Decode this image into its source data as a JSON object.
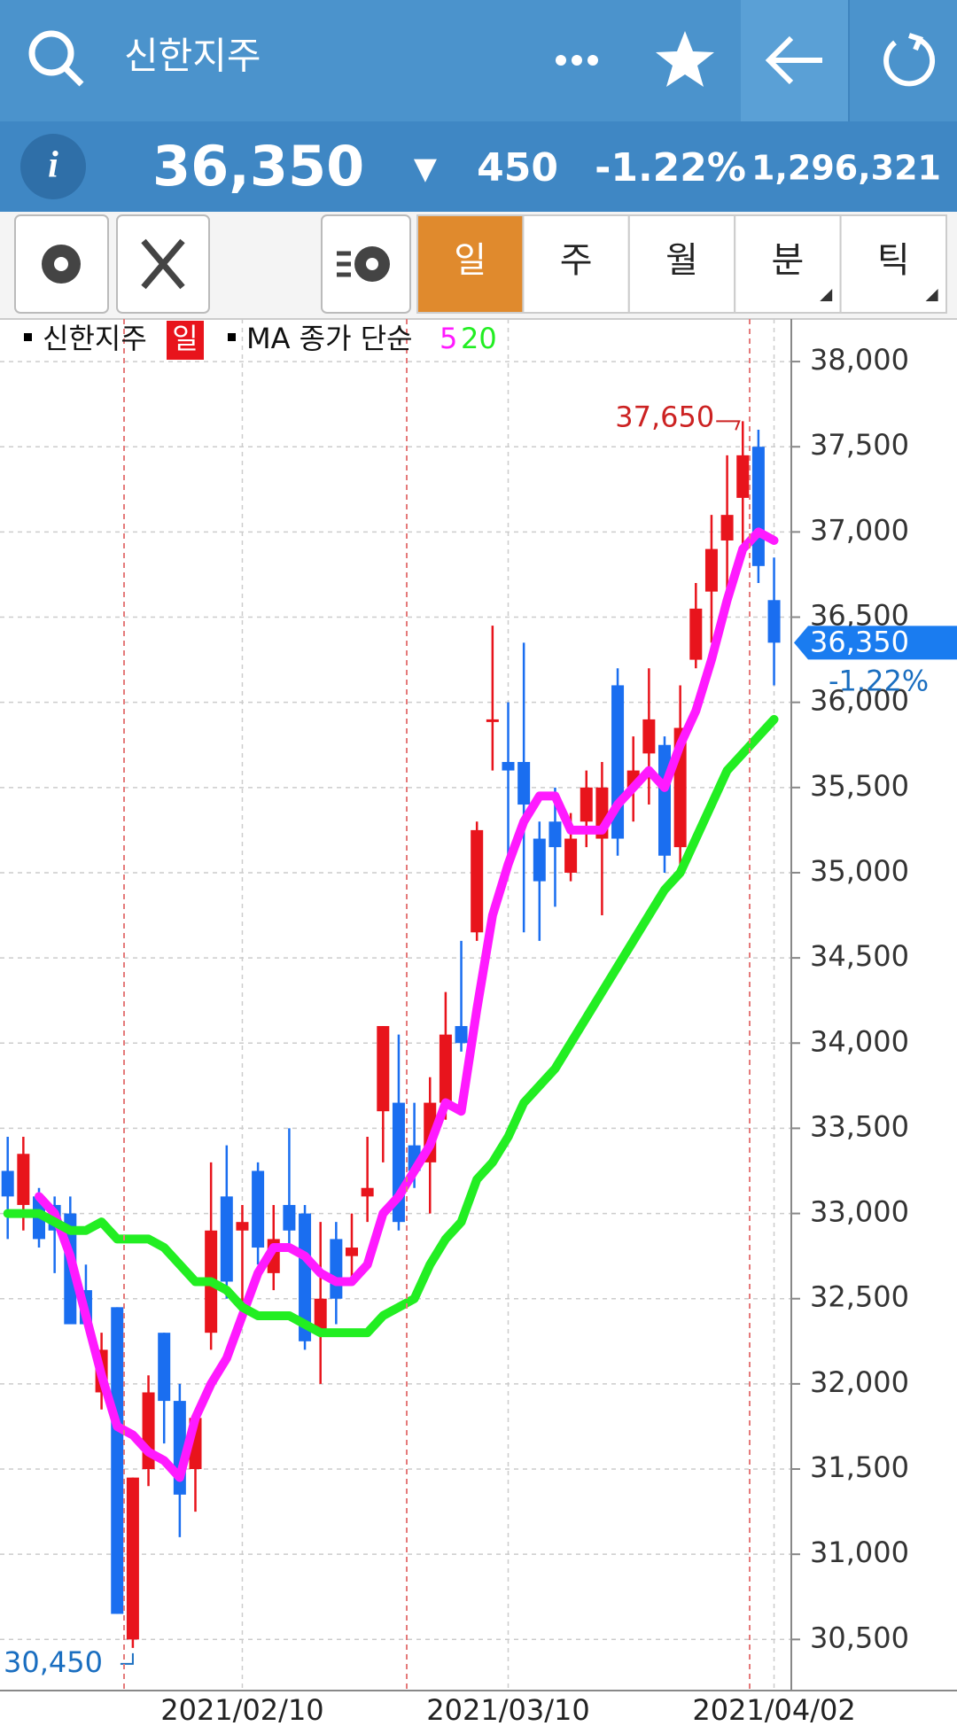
{
  "header": {
    "title": "신한지주",
    "price": "36,350",
    "arrow": "▼",
    "change": "450",
    "change_pct": "-1.22%",
    "volume": "1,296,321"
  },
  "toolbar": {
    "tabs": [
      "일",
      "주",
      "월",
      "분",
      "틱"
    ]
  },
  "chart_data": {
    "type": "candlestick",
    "name": "신한지주",
    "period": "일",
    "ma_label": "MA 종가 단순",
    "up_color": "#e8141c",
    "down_color": "#1a6ef0",
    "categories": [
      null,
      null,
      null,
      null,
      null,
      null,
      null,
      null,
      null,
      null,
      null,
      null,
      null,
      null,
      null,
      "2021/02/10",
      null,
      null,
      null,
      null,
      null,
      null,
      null,
      null,
      null,
      null,
      null,
      null,
      null,
      null,
      null,
      null,
      "2021/03/10",
      null,
      null,
      null,
      null,
      null,
      null,
      null,
      null,
      null,
      null,
      null,
      null,
      null,
      null,
      null,
      null,
      "2021/04/02"
    ],
    "open": [
      33250,
      33050,
      33100,
      33050,
      33000,
      32550,
      31950,
      32450,
      30500,
      31500,
      32300,
      31900,
      31500,
      32300,
      33100,
      32900,
      33250,
      32650,
      33050,
      33000,
      32300,
      32850,
      32750,
      33100,
      33600,
      33650,
      33400,
      33300,
      33650,
      34100,
      34650,
      35900,
      35650,
      35650,
      35200,
      35300,
      35000,
      35300,
      35200,
      36100,
      35500,
      35700,
      35750,
      35150,
      36250,
      36650,
      36950,
      37200,
      37500,
      36600
    ],
    "high": [
      33450,
      33450,
      33150,
      33100,
      33100,
      32700,
      32300,
      32450,
      31450,
      32050,
      32300,
      32000,
      31800,
      33300,
      33400,
      33050,
      33300,
      33050,
      33500,
      33050,
      32950,
      32950,
      33000,
      33450,
      34100,
      34050,
      33650,
      33800,
      34300,
      34600,
      35300,
      36450,
      36000,
      36350,
      35300,
      35500,
      35350,
      35600,
      35650,
      36200,
      35800,
      36200,
      35800,
      36100,
      36700,
      37100,
      37450,
      37650,
      37600,
      36850
    ],
    "low": [
      32850,
      32900,
      32800,
      32650,
      32350,
      32350,
      31850,
      30650,
      30450,
      31400,
      31650,
      31100,
      31250,
      32200,
      32500,
      32450,
      32700,
      32550,
      32800,
      32200,
      32000,
      32350,
      32600,
      32950,
      33300,
      32900,
      33150,
      33000,
      33550,
      33950,
      34600,
      35600,
      35050,
      34650,
      34600,
      34800,
      34950,
      35150,
      34750,
      35100,
      35300,
      35400,
      35000,
      35000,
      36200,
      36350,
      36650,
      36900,
      36700,
      36100
    ],
    "close": [
      33100,
      33350,
      32850,
      32900,
      32350,
      32350,
      32200,
      30650,
      31450,
      31950,
      31900,
      31350,
      31800,
      32900,
      32600,
      32950,
      32800,
      32850,
      32900,
      32250,
      32500,
      32500,
      32800,
      33150,
      34100,
      32950,
      33250,
      33650,
      34050,
      34000,
      35250,
      35900,
      35600,
      35400,
      34950,
      35150,
      35200,
      35500,
      35500,
      35200,
      35600,
      35900,
      35100,
      35850,
      36550,
      36900,
      37100,
      37450,
      36800,
      36350
    ],
    "series": [
      {
        "name": "5",
        "color": "#ff1aff",
        "values": [
          null,
          null,
          33100,
          33000,
          32750,
          32400,
          32050,
          31750,
          31700,
          31600,
          31550,
          31450,
          31800,
          32000,
          32150,
          32400,
          32650,
          32800,
          32800,
          32750,
          32650,
          32600,
          32600,
          32700,
          33000,
          33100,
          33250,
          33400,
          33650,
          33600,
          34200,
          34750,
          35050,
          35300,
          35450,
          35450,
          35250,
          35250,
          35250,
          35400,
          35500,
          35600,
          35500,
          35750,
          35950,
          36250,
          36600,
          36900,
          37000,
          36950
        ]
      },
      {
        "name": "20",
        "color": "#22ee22",
        "values": [
          33000,
          33000,
          33000,
          32950,
          32900,
          32900,
          32950,
          32850,
          32850,
          32850,
          32800,
          32700,
          32600,
          32600,
          32550,
          32450,
          32400,
          32400,
          32400,
          32350,
          32300,
          32300,
          32300,
          32300,
          32400,
          32450,
          32500,
          32700,
          32850,
          32950,
          33200,
          33300,
          33450,
          33650,
          33750,
          33850,
          34000,
          34150,
          34300,
          34450,
          34600,
          34750,
          34900,
          35000,
          35200,
          35400,
          35600,
          35700,
          35800,
          35900
        ]
      }
    ],
    "max_label": "37,650",
    "min_label": "30,450",
    "current_label": "36,350",
    "current_change": "-1.22%",
    "ylim": [
      30200,
      38250
    ],
    "yticks": [
      {
        "value": 30500,
        "label": "30,500"
      },
      {
        "value": 31000,
        "label": "31,000"
      },
      {
        "value": 31500,
        "label": "31,500"
      },
      {
        "value": 32000,
        "label": "32,000"
      },
      {
        "value": 32500,
        "label": "32,500"
      },
      {
        "value": 33000,
        "label": "33,000"
      },
      {
        "value": 33500,
        "label": "33,500"
      },
      {
        "value": 34000,
        "label": "34,000"
      },
      {
        "value": 34500,
        "label": "34,500"
      },
      {
        "value": 35000,
        "label": "35,000"
      },
      {
        "value": 35500,
        "label": "35,500"
      },
      {
        "value": 36000,
        "label": "36,000"
      },
      {
        "value": 36500,
        "label": "36,500"
      },
      {
        "value": 37000,
        "label": "37,000"
      },
      {
        "value": 37500,
        "label": "37,500"
      },
      {
        "value": 38000,
        "label": "38,000"
      }
    ],
    "grid": true
  }
}
